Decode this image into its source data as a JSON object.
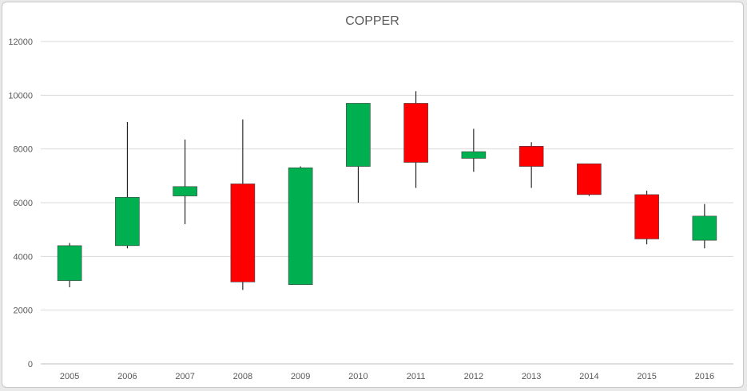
{
  "chart_data": {
    "type": "candlestick",
    "title": "COPPER",
    "xlabel": "",
    "ylabel": "",
    "ylim": [
      0,
      12000
    ],
    "y_ticks": [
      0,
      2000,
      4000,
      6000,
      8000,
      10000,
      12000
    ],
    "grid": true,
    "legend": "none",
    "colors": {
      "up": "#00b050",
      "down": "#ff0000",
      "wick": "#000000",
      "grid": "#d9d9d9",
      "axis": "#bfbfbf"
    },
    "categories": [
      "2005",
      "2006",
      "2007",
      "2008",
      "2009",
      "2010",
      "2011",
      "2012",
      "2013",
      "2014",
      "2015",
      "2016"
    ],
    "series": [
      {
        "open": 3100,
        "high": 4500,
        "low": 2850,
        "close": 4400
      },
      {
        "open": 4400,
        "high": 9000,
        "low": 4300,
        "close": 6200
      },
      {
        "open": 6250,
        "high": 8350,
        "low": 5200,
        "close": 6600
      },
      {
        "open": 6700,
        "high": 9100,
        "low": 2750,
        "close": 3050
      },
      {
        "open": 2950,
        "high": 7350,
        "low": 2950,
        "close": 7300
      },
      {
        "open": 7350,
        "high": 9700,
        "low": 6000,
        "close": 9700
      },
      {
        "open": 9700,
        "high": 10150,
        "low": 6550,
        "close": 7500
      },
      {
        "open": 7650,
        "high": 8750,
        "low": 7150,
        "close": 7900
      },
      {
        "open": 8100,
        "high": 8250,
        "low": 6550,
        "close": 7350
      },
      {
        "open": 7450,
        "high": 7450,
        "low": 6250,
        "close": 6300
      },
      {
        "open": 6300,
        "high": 6450,
        "low": 4450,
        "close": 4650
      },
      {
        "open": 4600,
        "high": 5950,
        "low": 4300,
        "close": 5500
      }
    ]
  }
}
